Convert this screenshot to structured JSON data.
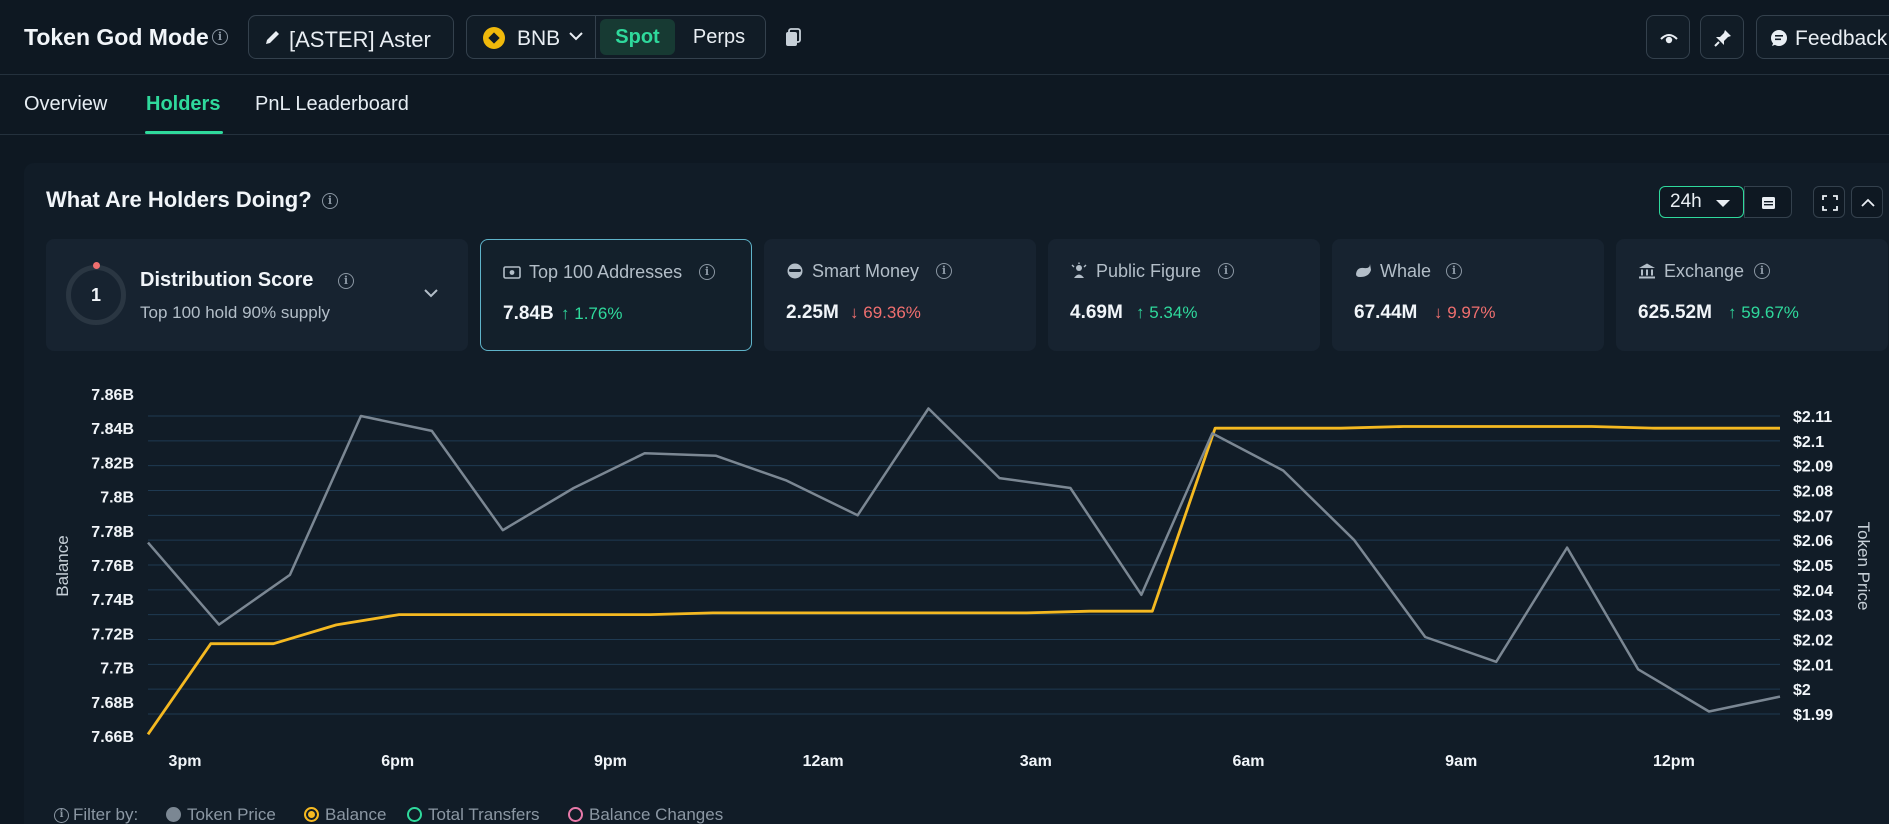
{
  "header": {
    "title": "Token God Mode",
    "token_label": "[ASTER] Aster",
    "chain": "BNB",
    "spot_label": "Spot",
    "perps_label": "Perps",
    "feedback_label": "Feedback"
  },
  "tabs": [
    {
      "label": "Overview",
      "active": false
    },
    {
      "label": "Holders",
      "active": true
    },
    {
      "label": "PnL Leaderboard",
      "active": false
    }
  ],
  "panel": {
    "title": "What Are Holders Doing?",
    "period": "24h"
  },
  "distribution": {
    "score": "1",
    "title": "Distribution Score",
    "subtitle": "Top 100 hold 90% supply"
  },
  "cards": [
    {
      "label": "Top 100 Addresses",
      "value": "7.84B",
      "change": "1.76%",
      "direction": "up",
      "icon": "cash-icon",
      "selected": true
    },
    {
      "label": "Smart Money",
      "value": "2.25M",
      "change": "69.36%",
      "direction": "down",
      "icon": "spy-icon",
      "selected": false
    },
    {
      "label": "Public Figure",
      "value": "4.69M",
      "change": "5.34%",
      "direction": "up",
      "icon": "public-figure-icon",
      "selected": false
    },
    {
      "label": "Whale",
      "value": "67.44M",
      "change": "9.97%",
      "direction": "down",
      "icon": "whale-icon",
      "selected": false
    },
    {
      "label": "Exchange",
      "value": "625.52M",
      "change": "59.67%",
      "direction": "up",
      "icon": "bank-icon",
      "selected": false
    }
  ],
  "filters": {
    "label": "Filter by:",
    "items": [
      {
        "label": "Token Price",
        "color": "#7b8793",
        "style": "filled"
      },
      {
        "label": "Balance",
        "color": "#f5b921",
        "style": "ring-filled"
      },
      {
        "label": "Total Transfers",
        "color": "#2fd99c",
        "style": "ring"
      },
      {
        "label": "Balance Changes",
        "color": "#e879a9",
        "style": "ring"
      }
    ]
  },
  "chart_data": {
    "type": "line",
    "ylabel": "Balance",
    "y2label": "Token Price",
    "x_ticks": [
      "3pm",
      "6pm",
      "9pm",
      "12am",
      "3am",
      "6am",
      "9am",
      "12pm"
    ],
    "y_ticks": [
      "7.66B",
      "7.68B",
      "7.7B",
      "7.72B",
      "7.74B",
      "7.76B",
      "7.78B",
      "7.8B",
      "7.82B",
      "7.84B",
      "7.86B"
    ],
    "y2_ticks": [
      "$1.99",
      "$2",
      "$2.01",
      "$2.02",
      "$2.03",
      "$2.04",
      "$2.05",
      "$2.06",
      "$2.07",
      "$2.08",
      "$2.09",
      "$2.1",
      "$2.11"
    ],
    "ylim": [
      7.66,
      7.86
    ],
    "y2lim": [
      1.99,
      2.11
    ],
    "grid": true,
    "series": [
      {
        "name": "Balance",
        "axis": "left",
        "color": "#f5b921",
        "values": [
          7.661,
          7.714,
          7.714,
          7.725,
          7.731,
          7.731,
          7.731,
          7.731,
          7.731,
          7.732,
          7.732,
          7.732,
          7.732,
          7.732,
          7.732,
          7.733,
          7.733,
          7.84,
          7.84,
          7.84,
          7.841,
          7.841,
          7.841,
          7.841,
          7.84,
          7.84,
          7.84
        ]
      },
      {
        "name": "Token Price",
        "axis": "right",
        "color": "#7b8793",
        "values": [
          2.059,
          2.026,
          2.046,
          2.11,
          2.104,
          2.064,
          2.081,
          2.095,
          2.094,
          2.084,
          2.07,
          2.113,
          2.085,
          2.081,
          2.038,
          2.103,
          2.088,
          2.06,
          2.021,
          2.011,
          2.057,
          2.008,
          1.991,
          1.997
        ]
      }
    ]
  }
}
